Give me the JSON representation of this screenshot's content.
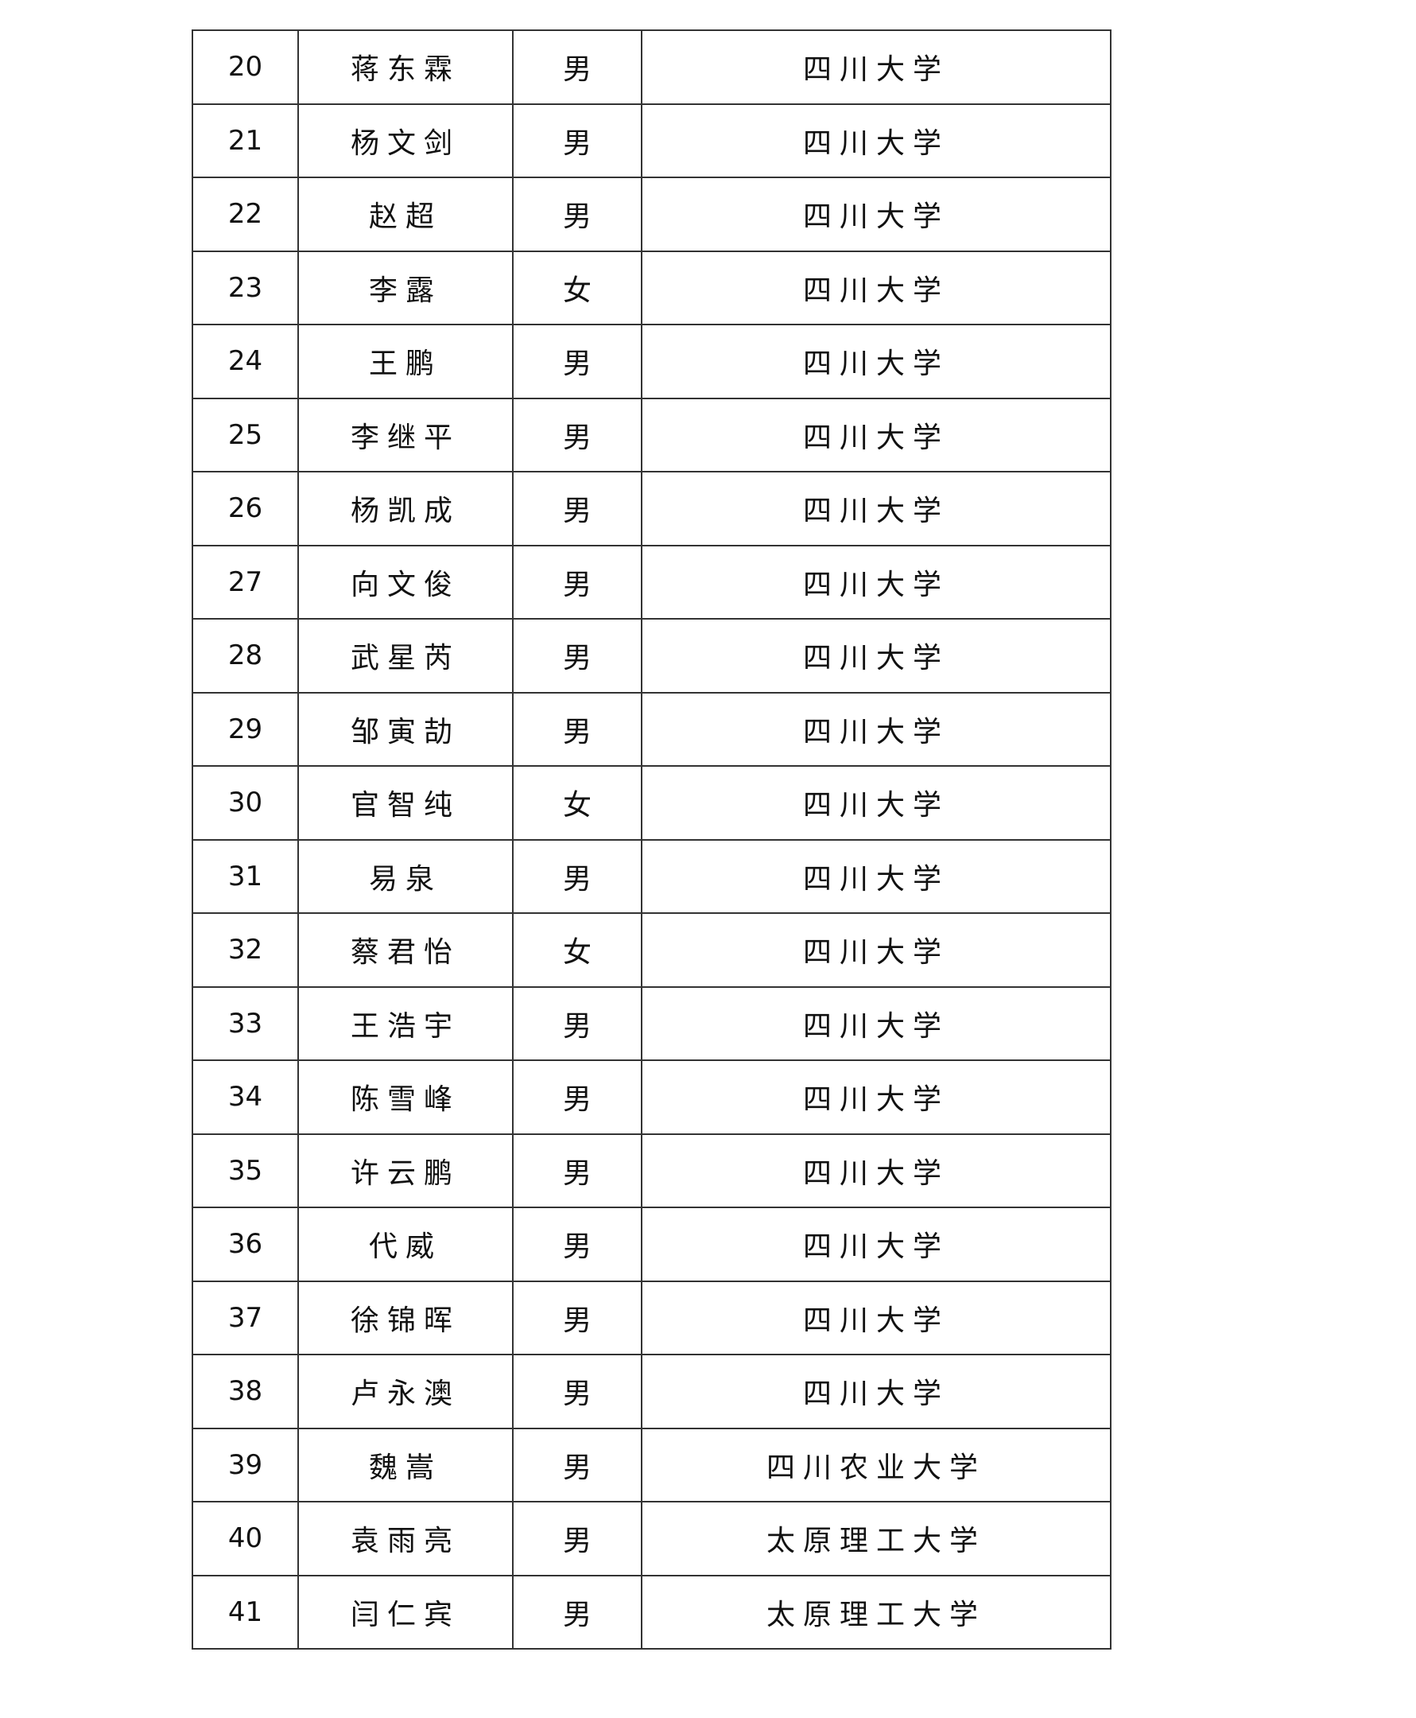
{
  "rows": [
    {
      "no": "20",
      "name": "蒋东霖",
      "gender": "男",
      "school": "四川大学"
    },
    {
      "no": "21",
      "name": "杨文剑",
      "gender": "男",
      "school": "四川大学"
    },
    {
      "no": "22",
      "name": "赵超",
      "gender": "男",
      "school": "四川大学"
    },
    {
      "no": "23",
      "name": "李露",
      "gender": "女",
      "school": "四川大学"
    },
    {
      "no": "24",
      "name": "王鹏",
      "gender": "男",
      "school": "四川大学"
    },
    {
      "no": "25",
      "name": "李继平",
      "gender": "男",
      "school": "四川大学"
    },
    {
      "no": "26",
      "name": "杨凯成",
      "gender": "男",
      "school": "四川大学"
    },
    {
      "no": "27",
      "name": "向文俊",
      "gender": "男",
      "school": "四川大学"
    },
    {
      "no": "28",
      "name": "武星芮",
      "gender": "男",
      "school": "四川大学"
    },
    {
      "no": "29",
      "name": "邹寅劼",
      "gender": "男",
      "school": "四川大学"
    },
    {
      "no": "30",
      "name": "官智纯",
      "gender": "女",
      "school": "四川大学"
    },
    {
      "no": "31",
      "name": "易泉",
      "gender": "男",
      "school": "四川大学"
    },
    {
      "no": "32",
      "name": "蔡君怡",
      "gender": "女",
      "school": "四川大学"
    },
    {
      "no": "33",
      "name": "王浩宇",
      "gender": "男",
      "school": "四川大学"
    },
    {
      "no": "34",
      "name": "陈雪峰",
      "gender": "男",
      "school": "四川大学"
    },
    {
      "no": "35",
      "name": "许云鹏",
      "gender": "男",
      "school": "四川大学"
    },
    {
      "no": "36",
      "name": "代威",
      "gender": "男",
      "school": "四川大学"
    },
    {
      "no": "37",
      "name": "徐锦晖",
      "gender": "男",
      "school": "四川大学"
    },
    {
      "no": "38",
      "name": "卢永澳",
      "gender": "男",
      "school": "四川大学"
    },
    {
      "no": "39",
      "name": "魏嵩",
      "gender": "男",
      "school": "四川农业大学"
    },
    {
      "no": "40",
      "name": "袁雨亮",
      "gender": "男",
      "school": "太原理工大学"
    },
    {
      "no": "41",
      "name": "闫仁宾",
      "gender": "男",
      "school": "太原理工大学"
    }
  ]
}
